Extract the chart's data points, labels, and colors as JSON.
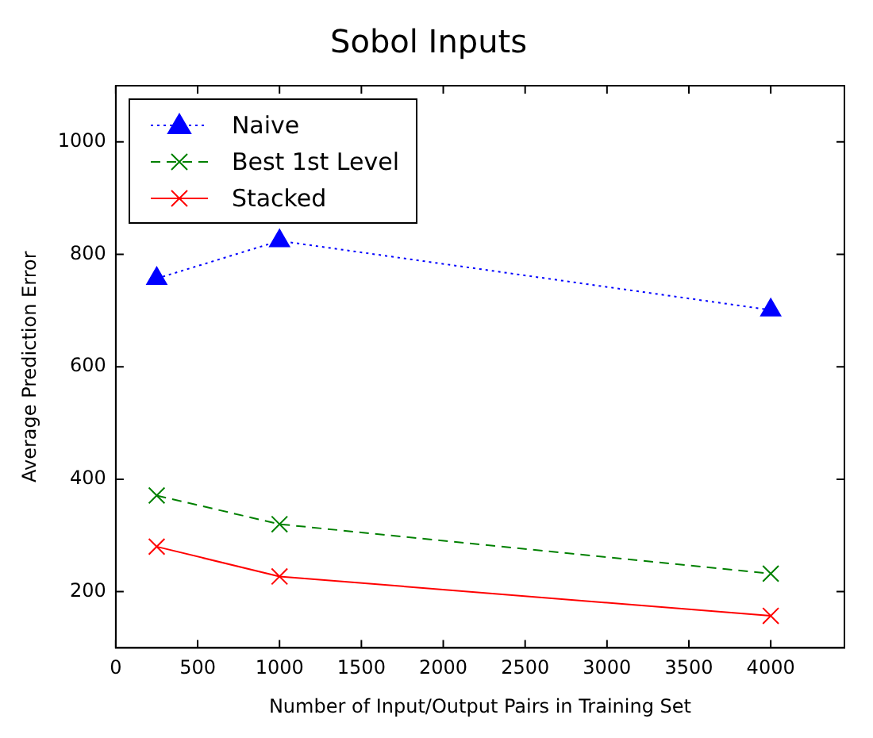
{
  "chart_data": {
    "type": "line",
    "title": "Sobol Inputs",
    "xlabel": "Number of Input/Output Pairs in Training Set",
    "ylabel": "Average Prediction Error",
    "x": [
      250,
      1000,
      4000
    ],
    "series": [
      {
        "name": "Naive",
        "color": "#0000ff",
        "values": [
          757,
          824,
          701
        ],
        "marker": "triangle",
        "line_style": "dotted"
      },
      {
        "name": "Best 1st Level",
        "color": "#008000",
        "values": [
          371,
          320,
          232
        ],
        "marker": "cross",
        "line_style": "dashed"
      },
      {
        "name": "Stacked",
        "color": "#ff0000",
        "values": [
          280,
          227,
          157
        ],
        "marker": "cross",
        "line_style": "solid"
      }
    ],
    "xlim": [
      0,
      4450
    ],
    "xticks": [
      0,
      500,
      1000,
      1500,
      2000,
      2500,
      3000,
      3500,
      4000
    ],
    "ylim": [
      100,
      1100
    ],
    "yticks": [
      200,
      400,
      600,
      800,
      1000
    ],
    "grid": false,
    "legend": "top left"
  }
}
